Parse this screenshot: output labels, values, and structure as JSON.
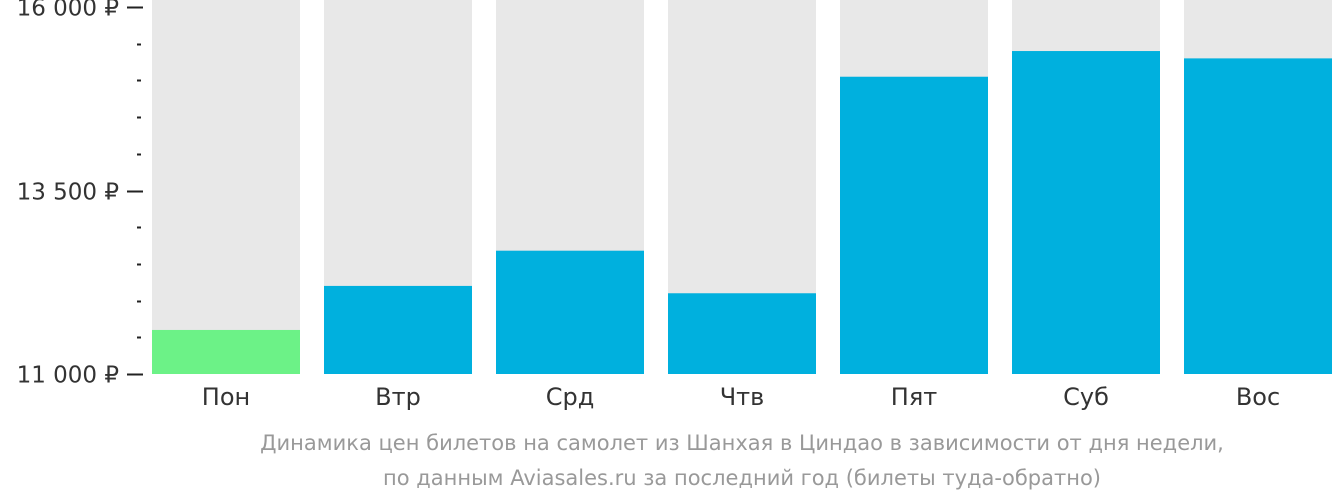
{
  "chart_data": {
    "type": "bar",
    "categories": [
      "Пон",
      "Втр",
      "Срд",
      "Чтв",
      "Пят",
      "Суб",
      "Вос"
    ],
    "values": [
      11600,
      12200,
      12680,
      12100,
      15050,
      15400,
      15300
    ],
    "bar_colors": [
      "#6cf287",
      "#00b0de",
      "#00b0de",
      "#00b0de",
      "#00b0de",
      "#00b0de",
      "#00b0de"
    ],
    "background_bar_color": "#e8e8e8",
    "ylim": [
      11000,
      16000
    ],
    "yticks": [
      {
        "value": 16000,
        "label": "16 000 ₽"
      },
      {
        "value": 13500,
        "label": "13 500 ₽"
      },
      {
        "value": 11000,
        "label": "11 000 ₽"
      }
    ],
    "minor_tick_step": 500,
    "caption": [
      "Динамика цен билетов на самолет из Шанхая в Циндао в зависимости от дня недели,",
      "по данным Aviasales.ru за последний год (билеты туда-обратно)"
    ]
  }
}
